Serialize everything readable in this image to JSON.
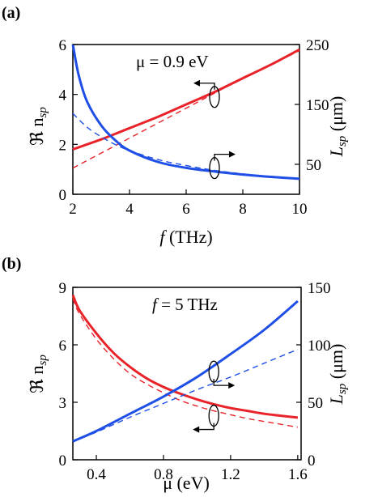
{
  "chart_data": [
    {
      "type": "line",
      "panel_label": "(a)",
      "annotation": "μ = 0.9 eV",
      "xlabel": {
        "main": "f",
        "rest": " (THz)"
      },
      "ylabel_left": {
        "main": "ℜ n",
        "sub": "sp"
      },
      "ylabel_right": {
        "main": "L",
        "sub": "sp",
        "rest": " (μm)"
      },
      "xlim": [
        2,
        10
      ],
      "ylim_left": [
        0,
        6
      ],
      "ylim_right": [
        0,
        250
      ],
      "x_ticks": [
        "2",
        "4",
        "6",
        "8",
        "10"
      ],
      "y_left_ticks": [
        "0",
        "2",
        "4",
        "6"
      ],
      "y_right_ticks": [
        "50",
        "150",
        "250"
      ],
      "series": [
        {
          "axis": "left",
          "color": "#e8232a",
          "style": "solid",
          "x": [
            2,
            3,
            4,
            5,
            6,
            7,
            8,
            9,
            10
          ],
          "values": [
            1.8,
            2.2,
            2.65,
            3.1,
            3.6,
            4.1,
            4.65,
            5.2,
            5.8
          ]
        },
        {
          "axis": "left",
          "color": "#e8232a",
          "style": "dashed",
          "x": [
            2,
            3,
            4,
            5,
            6,
            7,
            8,
            9,
            10
          ],
          "values": [
            1.05,
            1.65,
            2.25,
            2.85,
            3.45,
            4.05,
            4.65,
            5.2,
            5.75
          ]
        },
        {
          "axis": "right",
          "color": "#1f4fe6",
          "style": "solid",
          "x": [
            2,
            2.2,
            2.5,
            3,
            3.5,
            4,
            5,
            6,
            7,
            8,
            9,
            10
          ],
          "values": [
            250,
            200,
            155,
            115,
            90,
            73,
            54,
            44,
            38,
            33,
            29,
            26
          ]
        },
        {
          "axis": "right",
          "color": "#1f4fe6",
          "style": "dashed",
          "x": [
            2,
            2.5,
            3,
            3.5,
            4,
            5,
            6,
            7,
            8,
            9,
            10
          ],
          "values": [
            135,
            112,
            96,
            83,
            73,
            58,
            48,
            40,
            34,
            29,
            26
          ]
        }
      ],
      "markers": [
        {
          "x": 7.0,
          "y_left": 3.9,
          "direction": "left"
        },
        {
          "x": 7.0,
          "y_left": 1.05,
          "direction": "right"
        }
      ]
    },
    {
      "type": "line",
      "panel_label": "(b)",
      "annotation": "f = 5 THz",
      "xlabel": {
        "main": "μ",
        "rest": " (eV)"
      },
      "ylabel_left": {
        "main": "ℜ n",
        "sub": "sp"
      },
      "ylabel_right": {
        "main": "L",
        "sub": "sp",
        "rest": " (μm)"
      },
      "xlim": [
        0.26,
        1.62
      ],
      "ylim_left": [
        0,
        9
      ],
      "ylim_right": [
        0,
        150
      ],
      "x_ticks": [
        "0.4",
        "0.8",
        "1.2",
        "1.6"
      ],
      "x_tick_values": [
        0.4,
        0.8,
        1.2,
        1.6
      ],
      "y_left_ticks": [
        "0",
        "3",
        "6",
        "9"
      ],
      "y_right_ticks": [
        "0",
        "50",
        "100",
        "150"
      ],
      "series": [
        {
          "axis": "left",
          "color": "#e8232a",
          "style": "solid",
          "x": [
            0.26,
            0.3,
            0.4,
            0.5,
            0.6,
            0.7,
            0.8,
            0.9,
            1.0,
            1.1,
            1.2,
            1.3,
            1.4,
            1.5,
            1.6
          ],
          "values": [
            8.6,
            7.8,
            6.6,
            5.6,
            4.85,
            4.25,
            3.8,
            3.45,
            3.15,
            2.9,
            2.7,
            2.55,
            2.4,
            2.3,
            2.2
          ]
        },
        {
          "axis": "left",
          "color": "#e8232a",
          "style": "dashed",
          "x": [
            0.26,
            0.3,
            0.4,
            0.5,
            0.6,
            0.7,
            0.8,
            0.9,
            1.0,
            1.1,
            1.2,
            1.3,
            1.4,
            1.5,
            1.6
          ],
          "values": [
            8.4,
            7.6,
            6.3,
            5.3,
            4.5,
            3.95,
            3.5,
            3.1,
            2.8,
            2.55,
            2.35,
            2.15,
            2.0,
            1.85,
            1.7
          ]
        },
        {
          "axis": "right",
          "color": "#1f4fe6",
          "style": "solid",
          "x": [
            0.26,
            0.4,
            0.6,
            0.8,
            1.0,
            1.2,
            1.4,
            1.6
          ],
          "values": [
            16,
            25,
            40,
            55,
            72,
            92,
            113,
            138
          ]
        },
        {
          "axis": "right",
          "color": "#1f4fe6",
          "style": "dashed",
          "x": [
            0.26,
            0.4,
            0.6,
            0.8,
            1.0,
            1.2,
            1.4,
            1.6
          ],
          "values": [
            16,
            24,
            37,
            49,
            61,
            72,
            84,
            96
          ]
        }
      ],
      "markers": [
        {
          "x": 1.1,
          "y_left": 4.6,
          "direction": "right"
        },
        {
          "x": 1.1,
          "y_left": 2.3,
          "direction": "left"
        }
      ]
    }
  ]
}
